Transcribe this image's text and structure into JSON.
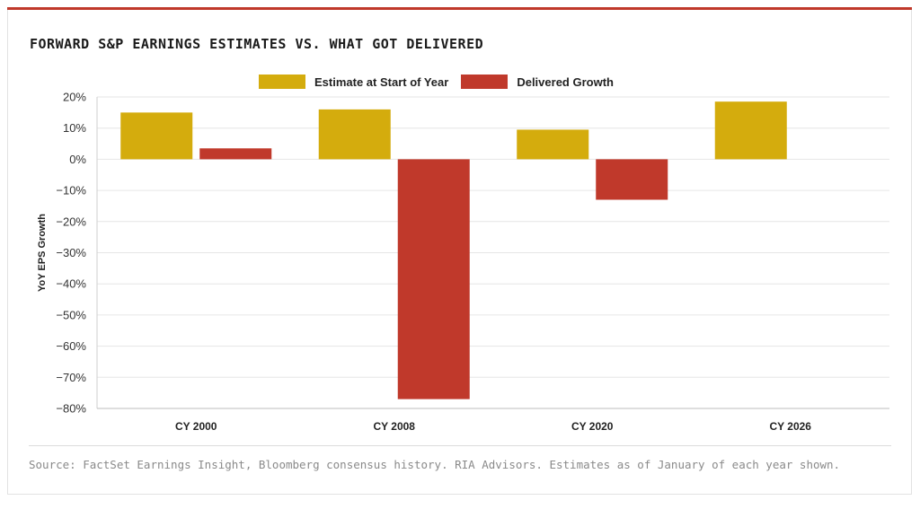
{
  "title": "FORWARD S&P EARNINGS ESTIMATES VS. WHAT GOT DELIVERED",
  "source": "Source: FactSet Earnings Insight, Bloomberg consensus history. RIA Advisors. Estimates as of January of each year shown.",
  "colors": {
    "accent": "#c0392b",
    "estimate": "#d4ac0d",
    "delivered": "#c0392b"
  },
  "chart_data": {
    "type": "bar",
    "title": "FORWARD S&P EARNINGS ESTIMATES VS. WHAT GOT DELIVERED",
    "xlabel": "",
    "ylabel": "YoY EPS Growth",
    "categories": [
      "CY 2000",
      "CY 2008",
      "CY 2020",
      "CY 2026"
    ],
    "series": [
      {
        "name": "Estimate at Start of Year",
        "color": "#d4ac0d",
        "values": [
          15,
          16,
          9.5,
          18.5
        ]
      },
      {
        "name": "Delivered Growth",
        "color": "#c0392b",
        "values": [
          3.5,
          -77,
          -13,
          null
        ]
      }
    ],
    "ylim": [
      -80,
      20
    ],
    "yticks": [
      20,
      10,
      0,
      -10,
      -20,
      -30,
      -40,
      -50,
      -60,
      -70,
      -80
    ],
    "ytick_labels": [
      "20%",
      "10%",
      "0%",
      "−10%",
      "−20%",
      "−30%",
      "−40%",
      "−50%",
      "−60%",
      "−70%",
      "−80%"
    ],
    "grid": true,
    "legend": "top-center"
  }
}
